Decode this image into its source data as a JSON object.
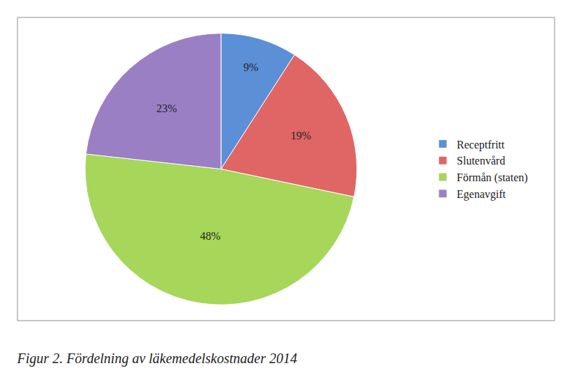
{
  "chart_data": {
    "type": "pie",
    "title": "Figur 2. Fördelning av läkemedelskostnader 2014",
    "categories": [
      "Receptfritt",
      "Slutenvård",
      "Förmån (staten)",
      "Egenavgift"
    ],
    "values": [
      9,
      19,
      48,
      23
    ],
    "value_labels": [
      "9%",
      "19%",
      "48%",
      "23%"
    ],
    "colors": [
      "#5b8fd6",
      "#e06666",
      "#a6d65a",
      "#9b7fc4"
    ],
    "data_labels": true,
    "legend": "right"
  }
}
